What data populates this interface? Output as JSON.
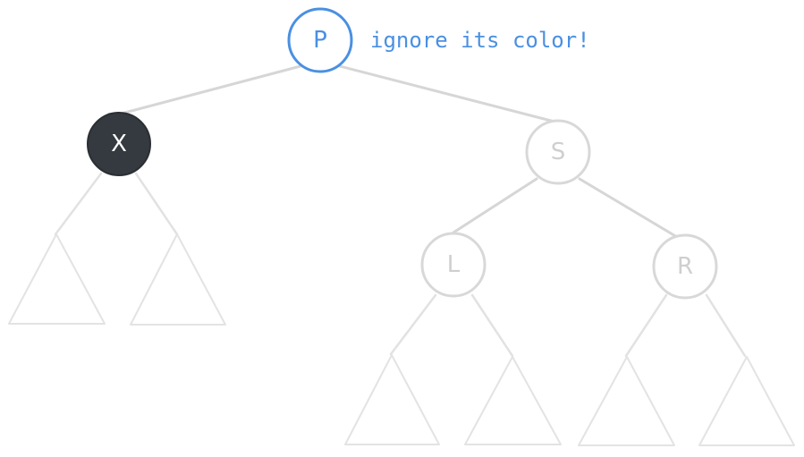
{
  "nodes": {
    "p": {
      "label": "P"
    },
    "x": {
      "label": "X"
    },
    "s": {
      "label": "S"
    },
    "l": {
      "label": "L"
    },
    "r": {
      "label": "R"
    }
  },
  "annotation": {
    "text": "ignore its color!"
  },
  "colors": {
    "accent_blue": "#4a90e2",
    "dark_node": "#343a40",
    "light_stroke": "#d8d8d8",
    "subtree_stroke": "#e3e3e3"
  }
}
